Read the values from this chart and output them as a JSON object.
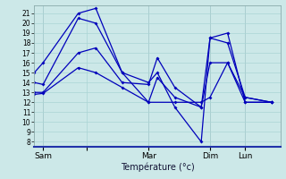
{
  "background_color": "#cce8e8",
  "grid_color": "#aad4d4",
  "line_color": "#0000bb",
  "xlabel": "Température (°c)",
  "ylim": [
    7.5,
    21.8
  ],
  "yticks": [
    8,
    9,
    10,
    11,
    12,
    13,
    14,
    15,
    16,
    17,
    18,
    19,
    20,
    21
  ],
  "xlim": [
    0,
    28
  ],
  "xtick_positions": [
    1,
    6,
    13,
    20,
    24
  ],
  "xtick_labels": [
    "Sam",
    "",
    "Mar",
    "Dim",
    "Lun"
  ],
  "vlines": [
    1,
    13,
    20,
    24
  ],
  "series1": {
    "x": [
      0,
      1,
      5,
      7,
      10,
      13,
      16,
      19,
      20,
      22,
      24,
      27
    ],
    "y": [
      15.0,
      16.0,
      21.0,
      21.5,
      15.0,
      12.0,
      12.0,
      12.0,
      12.5,
      16.0,
      12.0,
      12.0
    ]
  },
  "series2": {
    "x": [
      0,
      1,
      5,
      7,
      10,
      13,
      14,
      16,
      19,
      20,
      22,
      24,
      27
    ],
    "y": [
      14.0,
      13.8,
      20.5,
      20.0,
      15.0,
      14.0,
      15.0,
      11.5,
      8.0,
      18.5,
      19.0,
      12.0,
      12.0
    ]
  },
  "series3": {
    "x": [
      0,
      1,
      5,
      7,
      10,
      13,
      14,
      16,
      19,
      20,
      22,
      24,
      27
    ],
    "y": [
      13.0,
      13.0,
      17.0,
      17.5,
      14.0,
      13.8,
      16.5,
      13.5,
      11.5,
      18.5,
      18.0,
      12.5,
      12.0
    ]
  },
  "series4": {
    "x": [
      0,
      1,
      5,
      7,
      10,
      13,
      14,
      16,
      19,
      20,
      22,
      24,
      27
    ],
    "y": [
      12.8,
      12.9,
      15.5,
      15.0,
      13.5,
      12.0,
      14.5,
      12.5,
      11.5,
      16.0,
      16.0,
      12.5,
      12.0
    ]
  }
}
